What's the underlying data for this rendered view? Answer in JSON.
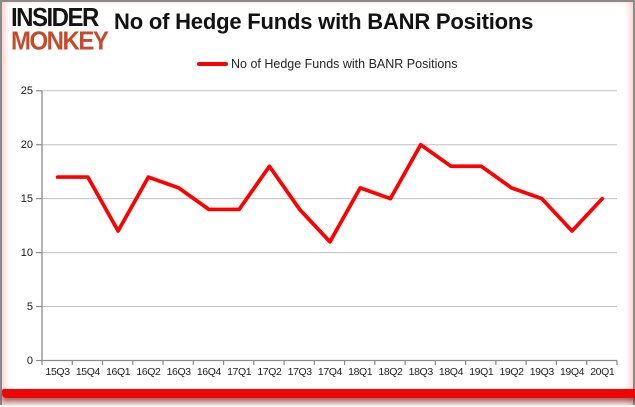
{
  "logo": {
    "line1": "INSIDER",
    "line2": "MONKEY"
  },
  "title": "No of Hedge Funds with BANR Positions",
  "legend": {
    "label": "No of Hedge Funds with BANR Positions"
  },
  "colors": {
    "series_line": "#fe0000",
    "gridline": "#c0c0c0",
    "axis": "#8c8c8c",
    "logo_black": "#161313",
    "logo_red": "#c54a2c",
    "bottom_bar_red": "#f00505",
    "card_border_gray": "#8a8a8a"
  },
  "chart_data": {
    "type": "line",
    "title": "No of Hedge Funds with BANR Positions",
    "categories": [
      "15Q3",
      "15Q4",
      "16Q1",
      "16Q2",
      "16Q3",
      "16Q4",
      "17Q1",
      "17Q2",
      "17Q3",
      "17Q4",
      "18Q1",
      "18Q2",
      "18Q3",
      "18Q4",
      "19Q1",
      "19Q2",
      "19Q3",
      "19Q4",
      "20Q1"
    ],
    "series": [
      {
        "name": "No of Hedge Funds with BANR Positions",
        "values": [
          17,
          17,
          12,
          17,
          16,
          14,
          14,
          18,
          14,
          11,
          16,
          15,
          20,
          18,
          18,
          16,
          15,
          12,
          15
        ]
      }
    ],
    "xlabel": "",
    "ylabel": "",
    "ylim": [
      0,
      25
    ],
    "yticks": [
      0,
      5,
      10,
      15,
      20,
      25
    ],
    "grid": true,
    "legend_position": "top-center"
  }
}
